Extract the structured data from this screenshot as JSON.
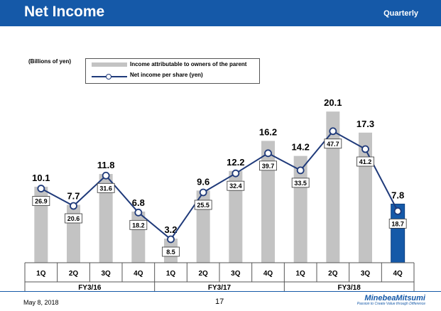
{
  "header": {
    "title": "Net Income",
    "subtitle": "Quarterly"
  },
  "unit_label": "(Billions of yen)",
  "legend": {
    "bar_label": "Income attributable to owners of the parent",
    "line_label": "Net income per share (yen)"
  },
  "chart_data": {
    "type": "bar",
    "categories": [
      "1Q",
      "2Q",
      "3Q",
      "4Q",
      "1Q",
      "2Q",
      "3Q",
      "4Q",
      "1Q",
      "2Q",
      "3Q",
      "4Q"
    ],
    "groups": [
      {
        "label": "FY3/16",
        "start": 0,
        "end": 3
      },
      {
        "label": "FY3/17",
        "start": 4,
        "end": 7
      },
      {
        "label": "FY3/18",
        "start": 8,
        "end": 11
      }
    ],
    "series": [
      {
        "name": "Income attributable to owners of the parent",
        "type": "bar",
        "axis": "left",
        "values": [
          10.1,
          7.7,
          11.8,
          6.8,
          3.2,
          9.6,
          12.2,
          16.2,
          14.2,
          20.1,
          17.3,
          7.8
        ]
      },
      {
        "name": "Net income per share (yen)",
        "type": "line",
        "axis": "right",
        "values": [
          26.9,
          20.6,
          31.6,
          18.2,
          8.5,
          25.5,
          32.4,
          39.7,
          33.5,
          47.7,
          41.2,
          18.7
        ]
      }
    ],
    "bar_ylim": [
      0,
      22
    ],
    "line_ylim": [
      0,
      60
    ],
    "highlight_index": 11,
    "colors": {
      "bar": "#c3c3c3",
      "bar_highlight": "#1559a8",
      "line": "#1f3a7a"
    }
  },
  "footer": {
    "date": "May 8, 2018",
    "page": "17",
    "logo": "MinebeaMitsumi",
    "tagline": "Passion to Create Value through Difference"
  }
}
